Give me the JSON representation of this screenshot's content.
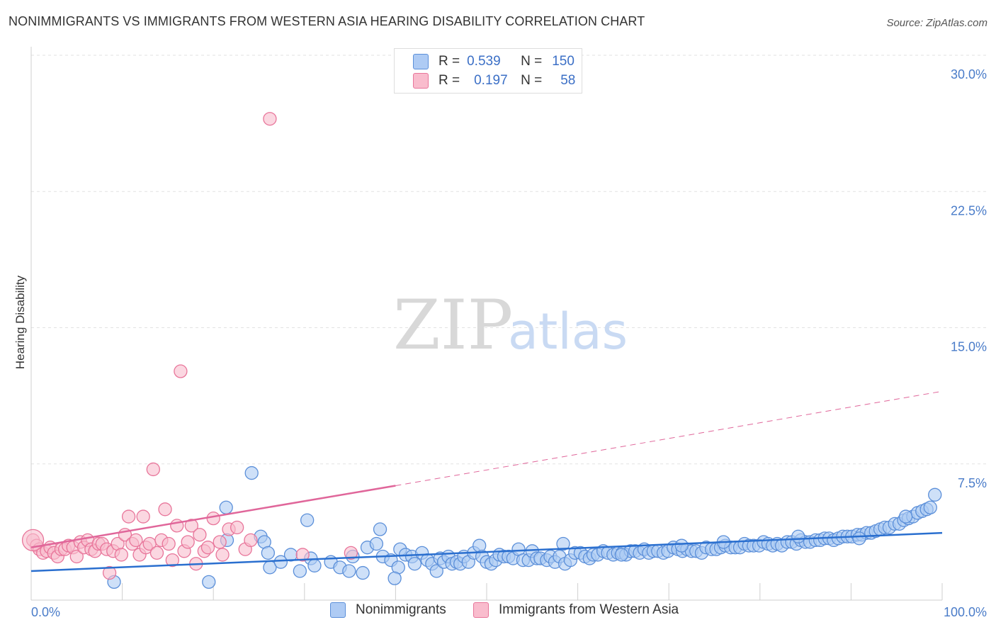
{
  "title": "NONIMMIGRANTS VS IMMIGRANTS FROM WESTERN ASIA HEARING DISABILITY CORRELATION CHART",
  "source": "Source: ZipAtlas.com",
  "watermark": {
    "zip": "ZIP",
    "atlas": "atlas"
  },
  "legend_top": {
    "rows": [
      {
        "r_label": "R =",
        "r_value": "0.539",
        "n_label": "N =",
        "n_value": "150",
        "color": "#aecbf4"
      },
      {
        "r_label": "R =",
        "r_value": "0.197",
        "n_label": "N =",
        "n_value": "58",
        "color": "#f9bccd"
      }
    ]
  },
  "legend_bottom": {
    "items": [
      {
        "label": "Nonimmigrants",
        "color": "#aecbf4"
      },
      {
        "label": "Immigrants from Western Asia",
        "color": "#f9bccd"
      }
    ]
  },
  "chart_data": {
    "type": "scatter",
    "title": "NONIMMIGRANTS VS IMMIGRANTS FROM WESTERN ASIA HEARING DISABILITY CORRELATION CHART",
    "xlabel": "",
    "ylabel": "Hearing Disability",
    "xlim": [
      0,
      100
    ],
    "ylim": [
      0,
      30
    ],
    "x_tick_labels": [
      "0.0%",
      "100.0%"
    ],
    "y_ticks": [
      7.5,
      15.0,
      22.5,
      30.0
    ],
    "y_tick_labels": [
      "7.5%",
      "15.0%",
      "22.5%",
      "30.0%"
    ],
    "grid": true,
    "series": [
      {
        "name": "Nonimmigrants",
        "color": "#5b8fd9",
        "fill": "#aecbf4",
        "trend": {
          "x": [
            0,
            100
          ],
          "y": [
            1.6,
            3.7
          ],
          "color": "#2a6fcf"
        },
        "points": [
          [
            9.1,
            1.0
          ],
          [
            19.5,
            1.0
          ],
          [
            21.4,
            5.1
          ],
          [
            21.5,
            3.3
          ],
          [
            24.2,
            7.0
          ],
          [
            25.2,
            3.5
          ],
          [
            25.6,
            3.2
          ],
          [
            26,
            2.6
          ],
          [
            26.2,
            1.8
          ],
          [
            27.4,
            2.1
          ],
          [
            28.5,
            2.5
          ],
          [
            29.5,
            1.6
          ],
          [
            30.3,
            4.4
          ],
          [
            30.7,
            2.3
          ],
          [
            31.1,
            1.9
          ],
          [
            32.9,
            2.1
          ],
          [
            33.9,
            1.8
          ],
          [
            34.9,
            1.6
          ],
          [
            35.3,
            2.4
          ],
          [
            36.4,
            1.5
          ],
          [
            36.9,
            2.9
          ],
          [
            37.9,
            3.1
          ],
          [
            38.3,
            3.9
          ],
          [
            38.6,
            2.4
          ],
          [
            39.5,
            2.2
          ],
          [
            40.3,
            1.8
          ],
          [
            39.9,
            1.2
          ],
          [
            40.5,
            2.8
          ],
          [
            41.1,
            2.5
          ],
          [
            41.8,
            2.4
          ],
          [
            42.1,
            2.0
          ],
          [
            42.9,
            2.6
          ],
          [
            43.5,
            2.2
          ],
          [
            44.0,
            2.0
          ],
          [
            44.5,
            1.6
          ],
          [
            44.9,
            2.3
          ],
          [
            45.3,
            2.1
          ],
          [
            45.8,
            2.4
          ],
          [
            46.2,
            2.0
          ],
          [
            46.7,
            2.1
          ],
          [
            47.1,
            2.0
          ],
          [
            47.5,
            2.4
          ],
          [
            48.0,
            2.1
          ],
          [
            48.6,
            2.6
          ],
          [
            49.2,
            3.0
          ],
          [
            49.5,
            2.4
          ],
          [
            50.0,
            2.1
          ],
          [
            50.5,
            2.0
          ],
          [
            51.0,
            2.2
          ],
          [
            51.4,
            2.5
          ],
          [
            51.9,
            2.4
          ],
          [
            52.4,
            2.4
          ],
          [
            52.9,
            2.3
          ],
          [
            53.5,
            2.8
          ],
          [
            54.0,
            2.2
          ],
          [
            54.6,
            2.2
          ],
          [
            55.0,
            2.7
          ],
          [
            55.5,
            2.3
          ],
          [
            55.9,
            2.3
          ],
          [
            56.6,
            2.2
          ],
          [
            57.0,
            2.4
          ],
          [
            57.5,
            2.1
          ],
          [
            58.0,
            2.4
          ],
          [
            58.6,
            2.0
          ],
          [
            59.2,
            2.2
          ],
          [
            59.7,
            2.6
          ],
          [
            60.3,
            2.6
          ],
          [
            60.8,
            2.4
          ],
          [
            61.3,
            2.3
          ],
          [
            61.7,
            2.5
          ],
          [
            62.2,
            2.5
          ],
          [
            62.8,
            2.7
          ],
          [
            63.3,
            2.6
          ],
          [
            63.9,
            2.5
          ],
          [
            64.4,
            2.6
          ],
          [
            64.9,
            2.6
          ],
          [
            65.3,
            2.5
          ],
          [
            65.8,
            2.7
          ],
          [
            66.3,
            2.7
          ],
          [
            66.8,
            2.6
          ],
          [
            67.3,
            2.8
          ],
          [
            67.8,
            2.6
          ],
          [
            68.3,
            2.7
          ],
          [
            68.8,
            2.7
          ],
          [
            69.4,
            2.6
          ],
          [
            69.9,
            2.7
          ],
          [
            70.5,
            2.9
          ],
          [
            71.0,
            2.8
          ],
          [
            71.5,
            2.7
          ],
          [
            72.0,
            2.8
          ],
          [
            72.5,
            2.7
          ],
          [
            73.0,
            2.7
          ],
          [
            73.6,
            2.6
          ],
          [
            74.1,
            2.9
          ],
          [
            74.7,
            2.8
          ],
          [
            75.2,
            2.8
          ],
          [
            75.7,
            2.9
          ],
          [
            76.2,
            3.0
          ],
          [
            76.8,
            2.9
          ],
          [
            77.3,
            2.9
          ],
          [
            77.8,
            2.9
          ],
          [
            78.3,
            3.1
          ],
          [
            78.8,
            3.0
          ],
          [
            79.3,
            3.0
          ],
          [
            79.9,
            3.0
          ],
          [
            80.4,
            3.2
          ],
          [
            80.9,
            3.1
          ],
          [
            81.4,
            3.0
          ],
          [
            81.9,
            3.1
          ],
          [
            82.4,
            3.0
          ],
          [
            83.0,
            3.2
          ],
          [
            83.5,
            3.2
          ],
          [
            84.0,
            3.1
          ],
          [
            84.5,
            3.3
          ],
          [
            85.0,
            3.2
          ],
          [
            85.5,
            3.2
          ],
          [
            86.1,
            3.3
          ],
          [
            86.6,
            3.3
          ],
          [
            87.1,
            3.4
          ],
          [
            87.6,
            3.4
          ],
          [
            88.1,
            3.3
          ],
          [
            88.6,
            3.4
          ],
          [
            89.1,
            3.5
          ],
          [
            89.6,
            3.5
          ],
          [
            90.1,
            3.5
          ],
          [
            90.7,
            3.6
          ],
          [
            91.2,
            3.6
          ],
          [
            91.7,
            3.7
          ],
          [
            92.2,
            3.7
          ],
          [
            92.7,
            3.8
          ],
          [
            93.2,
            3.9
          ],
          [
            93.7,
            4.0
          ],
          [
            94.2,
            4.0
          ],
          [
            94.8,
            4.2
          ],
          [
            95.3,
            4.2
          ],
          [
            95.8,
            4.4
          ],
          [
            96.3,
            4.5
          ],
          [
            96.8,
            4.6
          ],
          [
            97.3,
            4.8
          ],
          [
            97.8,
            4.9
          ],
          [
            98.3,
            5.0
          ],
          [
            98.7,
            5.1
          ],
          [
            99.2,
            5.8
          ],
          [
            58.4,
            3.1
          ],
          [
            64.8,
            2.5
          ],
          [
            71.4,
            3.0
          ],
          [
            76.0,
            3.2
          ],
          [
            84.2,
            3.5
          ],
          [
            90.9,
            3.4
          ],
          [
            96.0,
            4.6
          ]
        ]
      },
      {
        "name": "Immigrants from Western Asia",
        "color": "#e8759a",
        "fill": "#f9bccd",
        "trend": {
          "x": [
            0,
            40,
            100
          ],
          "y": [
            2.9,
            6.3,
            11.5
          ],
          "color": "#e0669a",
          "solid_until": 40
        },
        "points": [
          [
            0.2,
            3.3
          ],
          [
            0.6,
            3.0
          ],
          [
            0.9,
            2.8
          ],
          [
            1.3,
            2.6
          ],
          [
            1.7,
            2.7
          ],
          [
            2.1,
            2.9
          ],
          [
            2.5,
            2.6
          ],
          [
            2.9,
            2.4
          ],
          [
            3.3,
            2.8
          ],
          [
            3.7,
            2.8
          ],
          [
            4.1,
            3.0
          ],
          [
            4.6,
            2.9
          ],
          [
            5.0,
            2.4
          ],
          [
            5.4,
            3.2
          ],
          [
            5.8,
            2.9
          ],
          [
            6.2,
            3.3
          ],
          [
            6.6,
            2.8
          ],
          [
            7.0,
            2.7
          ],
          [
            7.4,
            3.1
          ],
          [
            7.8,
            3.1
          ],
          [
            8.3,
            2.8
          ],
          [
            8.6,
            1.5
          ],
          [
            9.0,
            2.7
          ],
          [
            9.5,
            3.1
          ],
          [
            9.9,
            2.5
          ],
          [
            10.3,
            3.6
          ],
          [
            10.7,
            4.6
          ],
          [
            11.1,
            3.1
          ],
          [
            11.5,
            3.3
          ],
          [
            11.9,
            2.5
          ],
          [
            12.3,
            4.6
          ],
          [
            12.6,
            2.9
          ],
          [
            13.0,
            3.1
          ],
          [
            13.4,
            7.2
          ],
          [
            13.8,
            2.6
          ],
          [
            14.3,
            3.3
          ],
          [
            14.7,
            5.0
          ],
          [
            15.1,
            3.1
          ],
          [
            15.5,
            2.2
          ],
          [
            16.0,
            4.1
          ],
          [
            16.4,
            12.6
          ],
          [
            16.8,
            2.7
          ],
          [
            17.2,
            3.2
          ],
          [
            17.6,
            4.1
          ],
          [
            18.1,
            2.0
          ],
          [
            18.5,
            3.6
          ],
          [
            19.0,
            2.7
          ],
          [
            19.4,
            2.9
          ],
          [
            20.0,
            4.5
          ],
          [
            20.7,
            3.2
          ],
          [
            21.0,
            2.5
          ],
          [
            21.7,
            3.9
          ],
          [
            22.6,
            4.0
          ],
          [
            23.5,
            2.8
          ],
          [
            24.1,
            3.3
          ],
          [
            26.2,
            26.5
          ],
          [
            29.8,
            2.5
          ],
          [
            35.1,
            2.6
          ]
        ]
      }
    ]
  }
}
